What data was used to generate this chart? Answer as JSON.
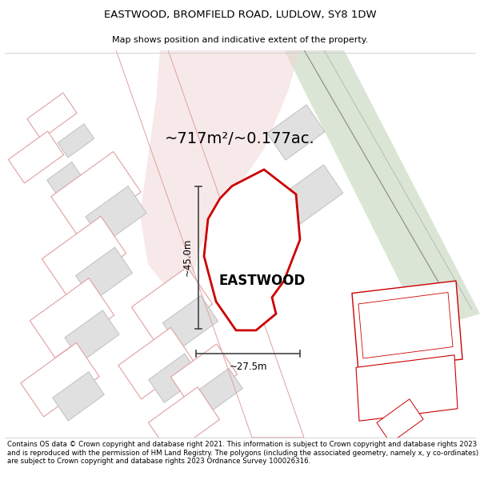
{
  "title_line1": "EASTWOOD, BROMFIELD ROAD, LUDLOW, SY8 1DW",
  "title_line2": "Map shows position and indicative extent of the property.",
  "area_text": "~717m²/~0.177ac.",
  "property_name": "EASTWOOD",
  "dim_vertical": "~45.0m",
  "dim_horizontal": "~27.5m",
  "footer_text": "Contains OS data © Crown copyright and database right 2021. This information is subject to Crown copyright and database rights 2023 and is reproduced with the permission of HM Land Registry. The polygons (including the associated geometry, namely x, y co-ordinates) are subject to Crown copyright and database rights 2023 Ordnance Survey 100026316.",
  "bg_color": "#ffffff",
  "road_green_color": "#c8d8c0",
  "pink_fill": "#f2d8d8",
  "plot_fill": "#ffffff",
  "plot_outline": "#cc0000",
  "building_fill": "#e0e0e0",
  "building_outline_dark": "#c0c0c0",
  "building_outline_pink": "#e8b8b8",
  "dim_color": "#444444"
}
